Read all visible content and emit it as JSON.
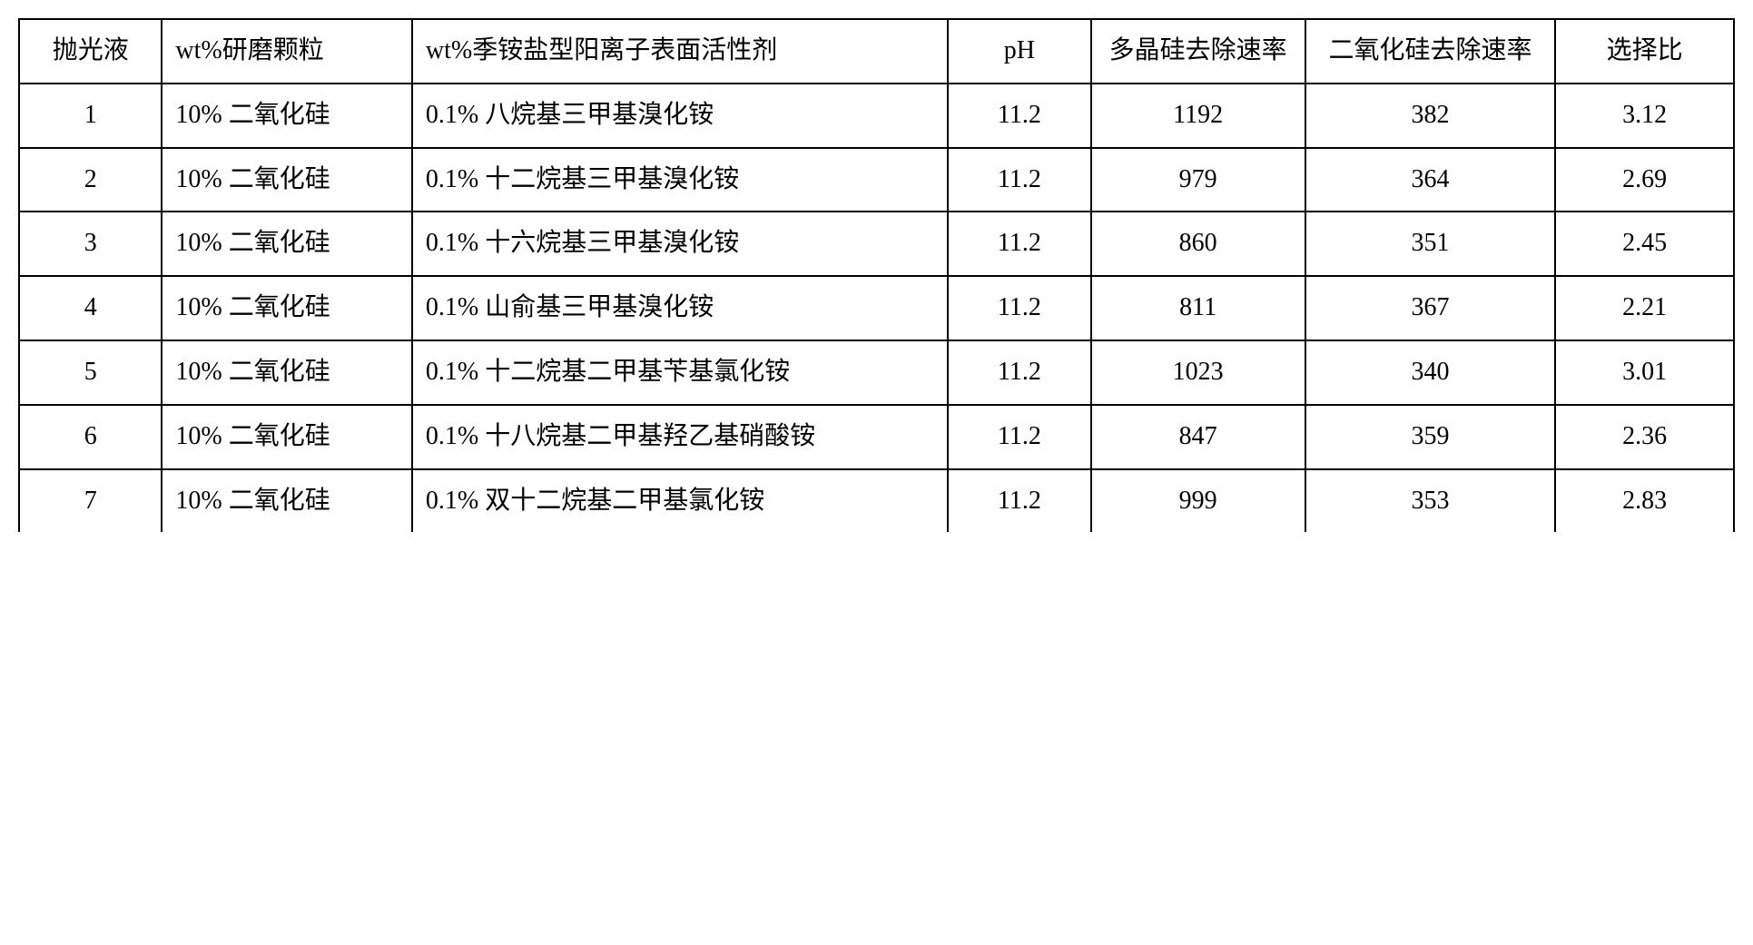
{
  "table": {
    "columns": [
      {
        "label": "抛光液",
        "align": "center",
        "width": "8%"
      },
      {
        "label": "wt%研磨颗粒",
        "align": "left",
        "width": "14%"
      },
      {
        "label": "wt%季铵盐型阳离子表面活性剂",
        "align": "left",
        "width": "30%"
      },
      {
        "label": "pH",
        "align": "center",
        "width": "8%"
      },
      {
        "label": "多晶硅去除速率",
        "align": "center",
        "width": "12%"
      },
      {
        "label": "二氧化硅去除速率",
        "align": "center",
        "width": "14%"
      },
      {
        "label": "选择比",
        "align": "center",
        "width": "10%"
      }
    ],
    "rows": [
      [
        "1",
        "10% 二氧化硅",
        "0.1% 八烷基三甲基溴化铵",
        "11.2",
        "1192",
        "382",
        "3.12"
      ],
      [
        "2",
        "10% 二氧化硅",
        "0.1% 十二烷基三甲基溴化铵",
        "11.2",
        "979",
        "364",
        "2.69"
      ],
      [
        "3",
        "10% 二氧化硅",
        "0.1% 十六烷基三甲基溴化铵",
        "11.2",
        "860",
        "351",
        "2.45"
      ],
      [
        "4",
        "10% 二氧化硅",
        "0.1% 山俞基三甲基溴化铵",
        "11.2",
        "811",
        "367",
        "2.21"
      ],
      [
        "5",
        "10% 二氧化硅",
        "0.1% 十二烷基二甲基苄基氯化铵",
        "11.2",
        "1023",
        "340",
        "3.01"
      ],
      [
        "6",
        "10% 二氧化硅",
        "0.1% 十八烷基二甲基羟乙基硝酸铵",
        "11.2",
        "847",
        "359",
        "2.36"
      ],
      [
        "7",
        "10% 二氧化硅",
        "0.1% 双十二烷基二甲基氯化铵",
        "11.2",
        "999",
        "353",
        "2.83"
      ]
    ],
    "cell_align": [
      "center",
      "left",
      "left",
      "center",
      "center",
      "center",
      "center"
    ],
    "border_color": "#000000",
    "background_color": "#ffffff",
    "font_size": 28
  }
}
